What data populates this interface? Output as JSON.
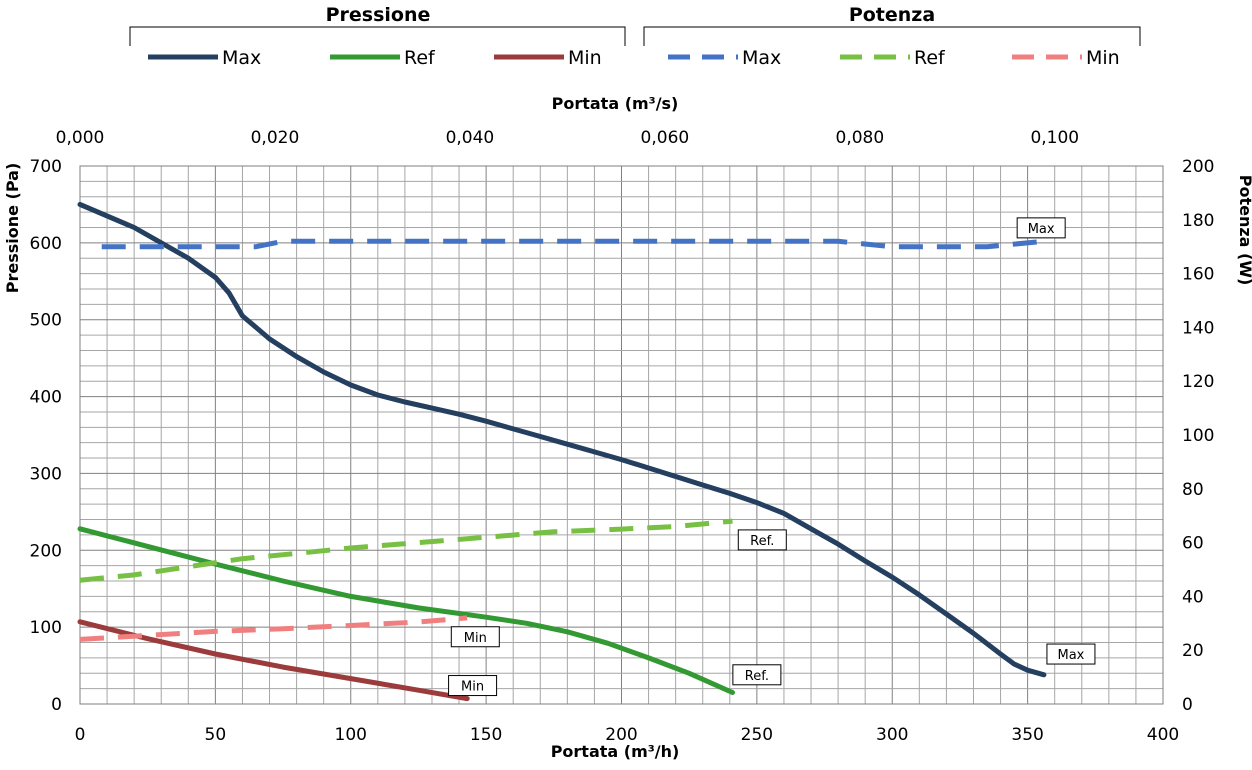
{
  "chart_data": {
    "type": "line",
    "x_bottom": {
      "label": "Portata (m³/h)",
      "range": [
        0,
        400
      ],
      "ticks": [
        "0",
        "50",
        "100",
        "150",
        "200",
        "250",
        "300",
        "350",
        "400"
      ]
    },
    "x_top": {
      "label": "Portata (m³/s)",
      "range": [
        0,
        0.1111
      ],
      "ticks": [
        "0,000",
        "0,020",
        "0,040",
        "0,060",
        "0,080",
        "0,100"
      ]
    },
    "y_left": {
      "label": "Pressione (Pa)",
      "range": [
        0,
        700
      ],
      "ticks": [
        "0",
        "100",
        "200",
        "300",
        "400",
        "500",
        "600",
        "700"
      ]
    },
    "y_right": {
      "label": "Potenza (W)",
      "range": [
        0,
        200
      ],
      "ticks": [
        "0",
        "20",
        "40",
        "60",
        "80",
        "100",
        "120",
        "140",
        "160",
        "180",
        "200"
      ]
    },
    "grid": true,
    "legend": {
      "groups": [
        {
          "title": "Pressione",
          "entries": [
            {
              "label": "Max",
              "color": "#243f60",
              "dashed": false
            },
            {
              "label": "Ref",
              "color": "#339933",
              "dashed": false
            },
            {
              "label": "Min",
              "color": "#9b3b3b",
              "dashed": false
            }
          ]
        },
        {
          "title": "Potenza",
          "entries": [
            {
              "label": "Max",
              "color": "#4472c4",
              "dashed": true
            },
            {
              "label": "Ref",
              "color": "#77c043",
              "dashed": true
            },
            {
              "label": "Min",
              "color": "#f08080",
              "dashed": true
            }
          ]
        }
      ]
    },
    "series": [
      {
        "group": "Pressione",
        "name": "Max",
        "axis": "left",
        "color": "#243f60",
        "dashed": false,
        "x": [
          0,
          20,
          40,
          50,
          55,
          60,
          65,
          70,
          80,
          90,
          100,
          110,
          120,
          130,
          140,
          150,
          160,
          170,
          180,
          190,
          200,
          210,
          220,
          230,
          240,
          250,
          260,
          270,
          280,
          290,
          300,
          310,
          320,
          330,
          340,
          345,
          350,
          356
        ],
        "y": [
          650,
          620,
          580,
          555,
          535,
          505,
          490,
          475,
          452,
          432,
          415,
          402,
          393,
          385,
          377,
          368,
          358,
          348,
          338,
          328,
          318,
          307,
          296,
          285,
          274,
          262,
          248,
          228,
          208,
          186,
          165,
          142,
          117,
          92,
          65,
          52,
          44,
          38
        ]
      },
      {
        "group": "Pressione",
        "name": "Ref",
        "axis": "left",
        "color": "#339933",
        "dashed": false,
        "x": [
          0,
          25,
          50,
          75,
          100,
          125,
          150,
          165,
          180,
          195,
          210,
          225,
          241
        ],
        "y": [
          228,
          205,
          182,
          160,
          140,
          125,
          113,
          105,
          94,
          79,
          60,
          40,
          15
        ]
      },
      {
        "group": "Pressione",
        "name": "Min",
        "axis": "left",
        "color": "#9b3b3b",
        "dashed": false,
        "x": [
          0,
          25,
          50,
          75,
          100,
          125,
          143
        ],
        "y": [
          107,
          85,
          65,
          48,
          33,
          18,
          7
        ]
      },
      {
        "group": "Potenza",
        "name": "Max",
        "axis": "right",
        "color": "#4472c4",
        "dashed": true,
        "x": [
          8,
          30,
          50,
          65,
          75,
          85,
          150,
          250,
          280,
          300,
          320,
          335,
          356
        ],
        "y": [
          170,
          170,
          170,
          170,
          172,
          172,
          172,
          172,
          172,
          170,
          170,
          170,
          172
        ]
      },
      {
        "group": "Potenza",
        "name": "Ref",
        "axis": "right",
        "color": "#77c043",
        "dashed": true,
        "x": [
          0,
          20,
          40,
          60,
          80,
          100,
          125,
          150,
          175,
          200,
          220,
          241
        ],
        "y": [
          46,
          48,
          51,
          54,
          56,
          58,
          60,
          62,
          64,
          65,
          66,
          68
        ]
      },
      {
        "group": "Potenza",
        "name": "Min",
        "axis": "right",
        "color": "#f08080",
        "dashed": true,
        "x": [
          0,
          25,
          50,
          75,
          100,
          125,
          143
        ],
        "y": [
          24,
          25.5,
          27,
          28,
          29.2,
          30.5,
          32
        ]
      }
    ],
    "annotations": [
      {
        "text": "Max",
        "x": 355,
        "y_right": 177
      },
      {
        "text": "Ref.",
        "x": 252,
        "y_right": 61
      },
      {
        "text": "Min",
        "x": 146,
        "y_right": 25
      },
      {
        "text": "Max",
        "x": 366,
        "y_left": 65
      },
      {
        "text": "Ref.",
        "x": 250,
        "y_left": 38
      },
      {
        "text": "Min",
        "x": 145,
        "y_left": 24
      }
    ]
  }
}
